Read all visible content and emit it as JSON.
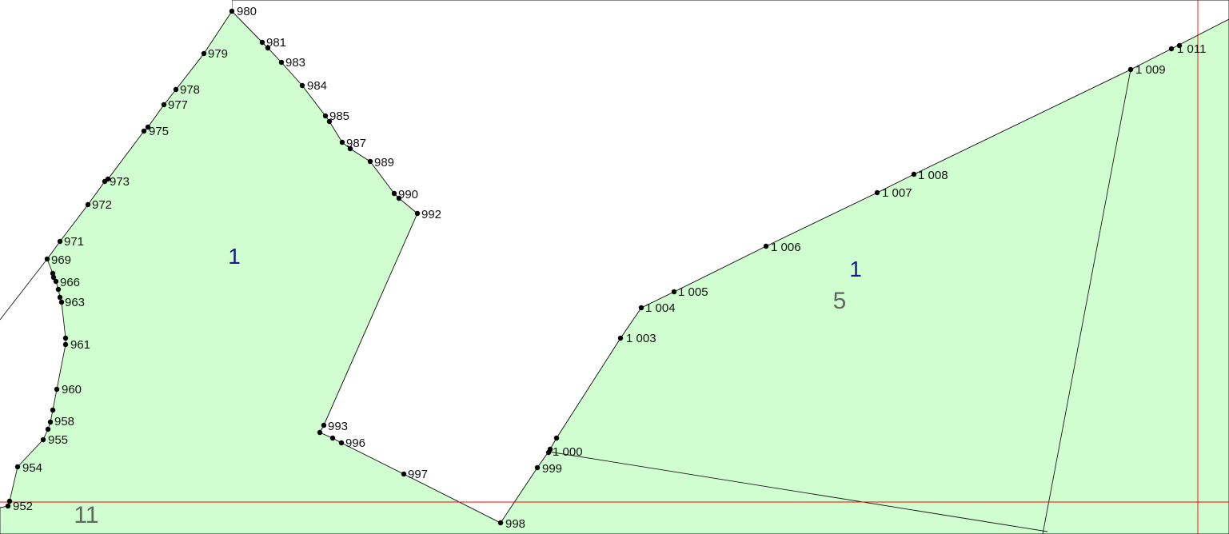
{
  "colors": {
    "parcel_fill": "#d0fed0",
    "parcel_stroke": "#1a1a1a",
    "grid_line": "#ff0000",
    "vertex": "#000000",
    "parcel_number": "#1a1a8c",
    "area_number": "#606860"
  },
  "parcel_numbers": {
    "left": "1",
    "right": "1"
  },
  "area_numbers": {
    "right": "5",
    "bottom_left": "11"
  },
  "vertices": [
    {
      "id": "v980",
      "label": "980"
    },
    {
      "id": "v981",
      "label": "981"
    },
    {
      "id": "v983",
      "label": "983"
    },
    {
      "id": "v984",
      "label": "984"
    },
    {
      "id": "v985",
      "label": "985"
    },
    {
      "id": "v987",
      "label": "987"
    },
    {
      "id": "v989",
      "label": "989"
    },
    {
      "id": "v990",
      "label": "990"
    },
    {
      "id": "v992",
      "label": "992"
    },
    {
      "id": "v993",
      "label": "993"
    },
    {
      "id": "v996",
      "label": "996"
    },
    {
      "id": "v997",
      "label": "997"
    },
    {
      "id": "v998",
      "label": "998"
    },
    {
      "id": "v979",
      "label": "979"
    },
    {
      "id": "v978",
      "label": "978"
    },
    {
      "id": "v977",
      "label": "977"
    },
    {
      "id": "v975",
      "label": "975"
    },
    {
      "id": "v973",
      "label": "973"
    },
    {
      "id": "v972",
      "label": "972"
    },
    {
      "id": "v971",
      "label": "971"
    },
    {
      "id": "v969",
      "label": "969"
    },
    {
      "id": "v966",
      "label": "966"
    },
    {
      "id": "v963",
      "label": "963"
    },
    {
      "id": "v961",
      "label": "961"
    },
    {
      "id": "v960",
      "label": "960"
    },
    {
      "id": "v958",
      "label": "958"
    },
    {
      "id": "v955",
      "label": "955"
    },
    {
      "id": "v954",
      "label": "954"
    },
    {
      "id": "v952",
      "label": "952"
    },
    {
      "id": "v999",
      "label": "999"
    },
    {
      "id": "v1000",
      "label": "1 000"
    },
    {
      "id": "v1003",
      "label": "1 003"
    },
    {
      "id": "v1004",
      "label": "1 004"
    },
    {
      "id": "v1005",
      "label": "1 005"
    },
    {
      "id": "v1006",
      "label": "1 006"
    },
    {
      "id": "v1007",
      "label": "1 007"
    },
    {
      "id": "v1008",
      "label": "1 008"
    },
    {
      "id": "v1009",
      "label": "1 009"
    },
    {
      "id": "v1011",
      "label": "1 011"
    }
  ]
}
